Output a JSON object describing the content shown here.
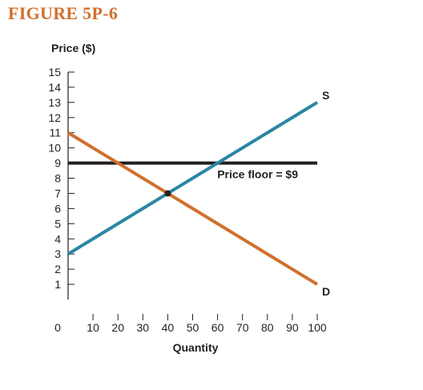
{
  "figure": {
    "title": "FIGURE 5P-6",
    "title_color": "#d1702c"
  },
  "chart_data": {
    "type": "line",
    "ylabel": "Price ($)",
    "xlabel": "Quantity",
    "xlim": [
      0,
      100
    ],
    "ylim": [
      0,
      15
    ],
    "x_ticks": [
      0,
      10,
      20,
      30,
      40,
      50,
      60,
      70,
      80,
      90,
      100
    ],
    "y_ticks": [
      1,
      2,
      3,
      4,
      5,
      6,
      7,
      8,
      9,
      10,
      11,
      12,
      13,
      14,
      15
    ],
    "grid": false,
    "series": [
      {
        "name": "S",
        "color": "#2a86a3",
        "points": [
          [
            0,
            3
          ],
          [
            100,
            13
          ]
        ]
      },
      {
        "name": "D",
        "color": "#d1702c",
        "points": [
          [
            0,
            11
          ],
          [
            100,
            1
          ]
        ]
      }
    ],
    "hlines": [
      {
        "y": 9,
        "x_range": [
          0,
          100
        ],
        "color": "#231f20",
        "label": "Price floor = $9"
      }
    ],
    "markers": [
      {
        "x": 40,
        "y": 7,
        "color": "#231f20"
      }
    ]
  }
}
